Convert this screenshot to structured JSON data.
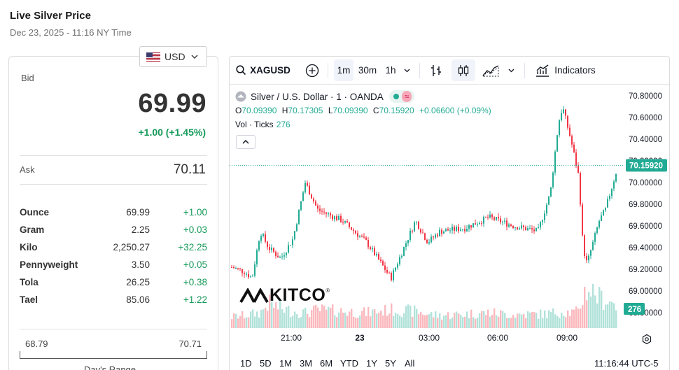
{
  "page": {
    "title": "Live Silver Price",
    "date": "Dec 23, 2025 - 11:16 NY Time"
  },
  "currency": {
    "selected": "USD",
    "icon": "us-flag-icon"
  },
  "quote": {
    "bid_label": "Bid",
    "bid": "69.99",
    "bid_change": "+1.00 (+1.45%)",
    "ask_label": "Ask",
    "ask": "70.11"
  },
  "units": [
    {
      "name": "Ounce",
      "price": "69.99",
      "change": "+1.00"
    },
    {
      "name": "Gram",
      "price": "2.25",
      "change": "+0.03"
    },
    {
      "name": "Kilo",
      "price": "2,250.27",
      "change": "+32.25"
    },
    {
      "name": "Pennyweight",
      "price": "3.50",
      "change": "+0.05"
    },
    {
      "name": "Tola",
      "price": "26.25",
      "change": "+0.38"
    },
    {
      "name": "Tael",
      "price": "85.06",
      "change": "+1.22"
    }
  ],
  "day_range": {
    "low": "68.79",
    "high": "70.71",
    "caption": "Day's Range"
  },
  "chart_toolbar": {
    "symbol": "XAGUSD",
    "intervals": [
      "1m",
      "30m",
      "1h"
    ],
    "active_interval": "1m",
    "indicators_label": "Indicators"
  },
  "chart_legend": {
    "title": "Silver / U.S. Dollar · 1 · OANDA",
    "o_label": "O",
    "o": "70.09390",
    "h_label": "H",
    "h": "70.17305",
    "l_label": "L",
    "l": "70.09390",
    "c_label": "C",
    "c": "70.15920",
    "change": "+0.06600 (+0.09%)",
    "vol_label": "Vol · Ticks",
    "vol": "276"
  },
  "chart_data": {
    "type": "line",
    "title": "Silver / U.S. Dollar · 1 · OANDA",
    "x_ticks": [
      "21:00",
      "23",
      "03:00",
      "06:00",
      "09:00"
    ],
    "y_ticks": [
      "70.80000",
      "70.60000",
      "70.40000",
      "70.20000",
      "70.00000",
      "69.80000",
      "69.60000",
      "69.40000",
      "69.20000",
      "69.00000",
      "68.80000"
    ],
    "ylim": [
      68.8,
      70.8
    ],
    "last_price": "70.15920",
    "last_volume": "276",
    "series": [
      {
        "x": [
          "19:30",
          "20:00",
          "20:20",
          "20:40",
          "21:00",
          "21:30",
          "22:00",
          "22:30",
          "23:00",
          "00:00",
          "01:00",
          "02:00",
          "03:00",
          "03:30",
          "04:00",
          "05:00",
          "06:00",
          "07:00",
          "08:00",
          "08:30",
          "08:50",
          "09:00",
          "09:20",
          "09:40",
          "09:50",
          "10:00",
          "10:15",
          "10:30",
          "10:45",
          "11:00",
          "11:16"
        ],
        "values": [
          69.22,
          69.18,
          69.12,
          69.55,
          69.4,
          69.3,
          69.48,
          70.0,
          69.75,
          69.65,
          69.45,
          69.12,
          69.65,
          69.45,
          69.55,
          69.58,
          69.68,
          69.6,
          69.55,
          69.9,
          70.55,
          70.7,
          70.4,
          70.05,
          69.4,
          69.25,
          69.45,
          69.65,
          69.75,
          69.95,
          70.16
        ]
      }
    ],
    "volume": [
      40,
      45,
      50,
      55,
      90,
      70,
      60,
      55,
      65,
      60,
      55,
      65,
      60,
      50,
      45,
      50,
      55,
      48,
      50,
      52,
      58,
      60,
      55,
      58,
      120,
      140,
      130,
      110,
      100,
      95,
      70
    ]
  },
  "periods": [
    "1D",
    "5D",
    "1M",
    "3M",
    "6M",
    "YTD",
    "1Y",
    "5Y",
    "All"
  ],
  "clock": "11:16:44 UTC-5",
  "watermark": "KITCO",
  "colors": {
    "up": "#22ab94",
    "down": "#f23645",
    "accent": "#179a5a"
  }
}
